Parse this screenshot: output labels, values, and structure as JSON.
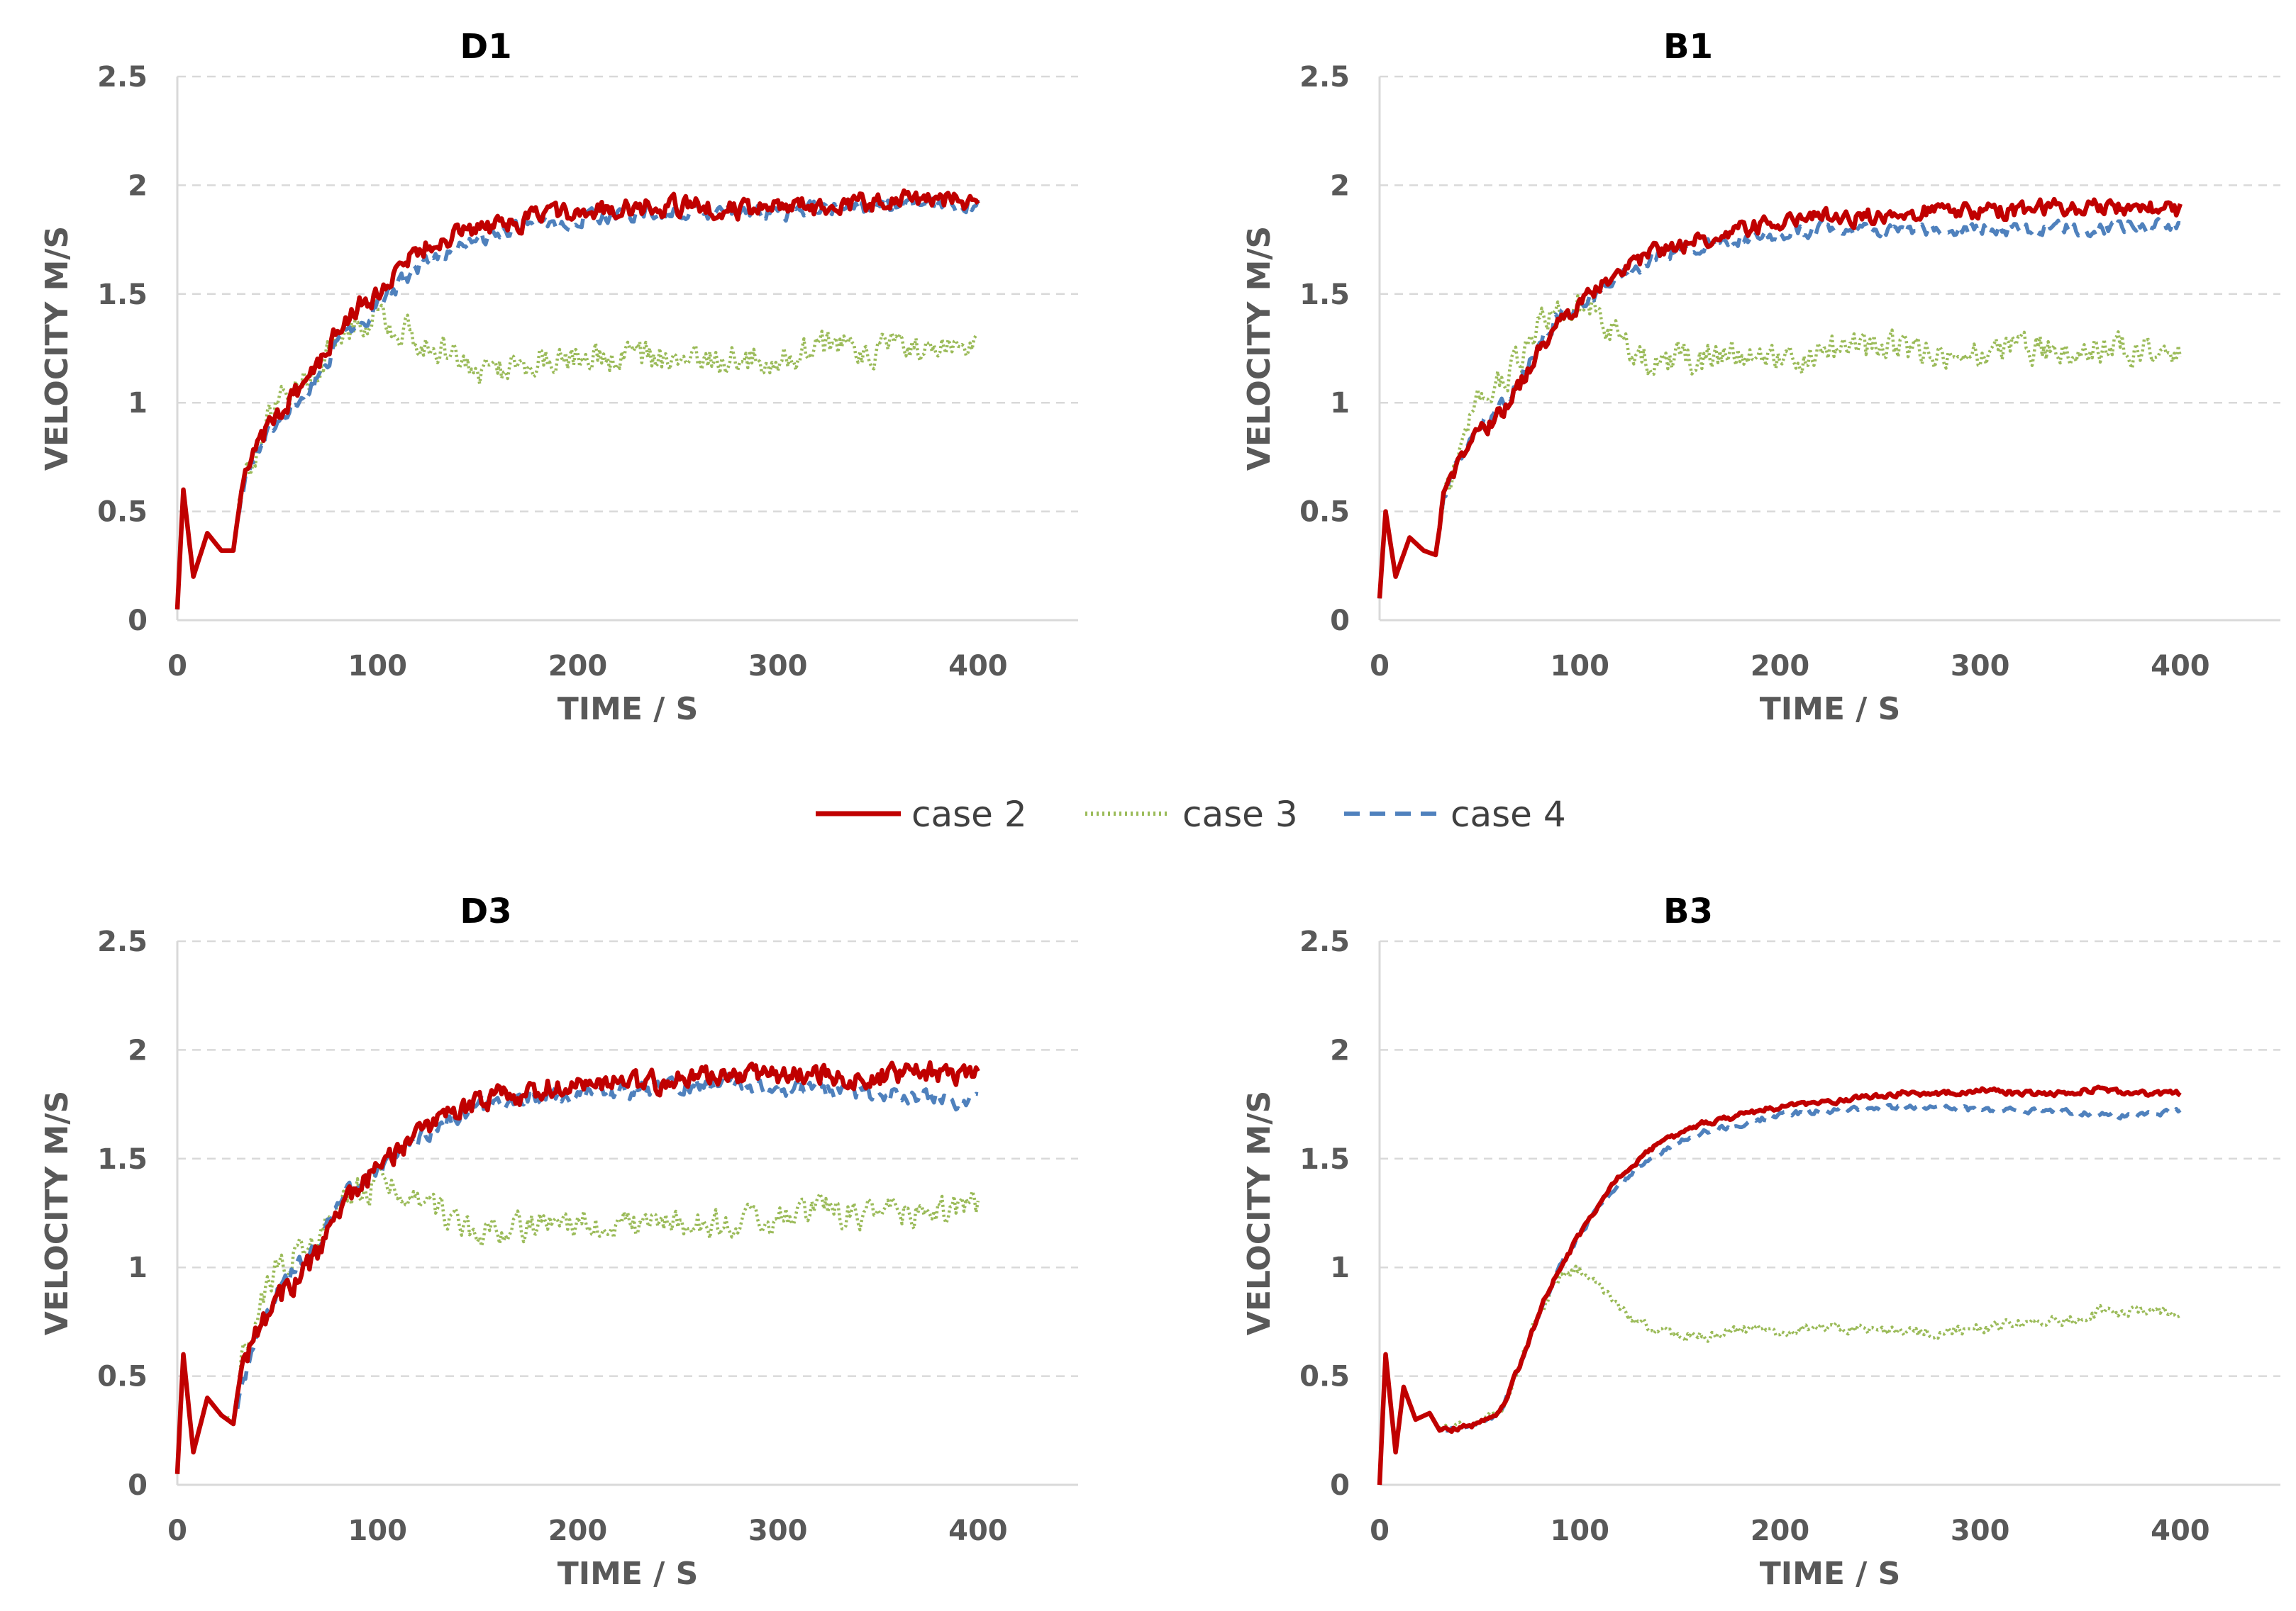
{
  "chart_data": [
    {
      "type": "line",
      "title": "D1",
      "xlabel": "TIME / S",
      "ylabel": "VELOCITY M/S",
      "xlim": [
        0,
        450
      ],
      "ylim": [
        0,
        2.5
      ],
      "xticks": [
        "0",
        "100",
        "200",
        "300",
        "400"
      ],
      "yticks": [
        "0",
        "0.5",
        "1",
        "1.5",
        "2",
        "2.5"
      ],
      "grid": true,
      "series": [
        {
          "name": "case 2",
          "x": [
            0,
            3,
            8,
            15,
            22,
            28,
            32,
            40,
            50,
            60,
            70,
            80,
            90,
            100,
            120,
            140,
            160,
            180,
            200,
            220,
            240,
            260,
            280,
            300,
            320,
            340,
            360,
            380,
            400
          ],
          "values": [
            0.05,
            0.6,
            0.2,
            0.4,
            0.32,
            0.32,
            0.6,
            0.8,
            0.95,
            1.05,
            1.15,
            1.35,
            1.45,
            1.5,
            1.7,
            1.78,
            1.82,
            1.85,
            1.88,
            1.9,
            1.9,
            1.9,
            1.88,
            1.9,
            1.9,
            1.92,
            1.92,
            1.95,
            1.92
          ],
          "noise": 0.07
        },
        {
          "name": "case 3",
          "x": [
            0,
            3,
            8,
            15,
            22,
            28,
            32,
            40,
            50,
            60,
            70,
            80,
            90,
            100,
            110,
            120,
            130,
            140,
            150,
            160,
            180,
            200,
            220,
            240,
            260,
            280,
            300,
            320,
            340,
            360,
            380,
            400
          ],
          "values": [
            0.05,
            0.6,
            0.2,
            0.4,
            0.32,
            0.32,
            0.6,
            0.8,
            1.0,
            1.05,
            1.15,
            1.3,
            1.38,
            1.4,
            1.35,
            1.3,
            1.25,
            1.2,
            1.15,
            1.15,
            1.2,
            1.2,
            1.2,
            1.2,
            1.2,
            1.2,
            1.2,
            1.25,
            1.25,
            1.25,
            1.25,
            1.3
          ],
          "noise": 0.11
        },
        {
          "name": "case 4",
          "x": [
            0,
            3,
            8,
            15,
            22,
            28,
            32,
            40,
            50,
            60,
            70,
            80,
            90,
            100,
            120,
            140,
            160,
            180,
            200,
            220,
            240,
            260,
            280,
            300,
            320,
            340,
            360,
            380,
            400
          ],
          "values": [
            0.05,
            0.6,
            0.2,
            0.4,
            0.32,
            0.32,
            0.6,
            0.78,
            0.92,
            1.0,
            1.1,
            1.28,
            1.35,
            1.45,
            1.62,
            1.72,
            1.78,
            1.82,
            1.85,
            1.87,
            1.88,
            1.88,
            1.88,
            1.88,
            1.9,
            1.9,
            1.9,
            1.92,
            1.9
          ],
          "noise": 0.06
        }
      ]
    },
    {
      "type": "line",
      "title": "B1",
      "xlabel": "TIME / S",
      "ylabel": "VELOCITY M/S",
      "xlim": [
        0,
        450
      ],
      "ylim": [
        0,
        2.5
      ],
      "xticks": [
        "0",
        "100",
        "200",
        "300",
        "400"
      ],
      "yticks": [
        "0",
        "0.5",
        "1",
        "1.5",
        "2",
        "2.5"
      ],
      "grid": true,
      "series": [
        {
          "name": "case 2",
          "x": [
            0,
            3,
            8,
            15,
            22,
            28,
            32,
            40,
            50,
            60,
            70,
            80,
            90,
            100,
            120,
            140,
            160,
            180,
            200,
            220,
            240,
            260,
            280,
            300,
            320,
            340,
            360,
            380,
            400
          ],
          "values": [
            0.1,
            0.5,
            0.2,
            0.38,
            0.32,
            0.3,
            0.55,
            0.75,
            0.85,
            0.95,
            1.08,
            1.25,
            1.38,
            1.45,
            1.6,
            1.7,
            1.75,
            1.8,
            1.82,
            1.85,
            1.85,
            1.87,
            1.88,
            1.88,
            1.88,
            1.9,
            1.9,
            1.9,
            1.88
          ],
          "noise": 0.06
        },
        {
          "name": "case 3",
          "x": [
            0,
            3,
            8,
            15,
            22,
            28,
            32,
            40,
            50,
            60,
            70,
            80,
            90,
            100,
            110,
            120,
            130,
            140,
            160,
            180,
            200,
            220,
            240,
            260,
            280,
            300,
            320,
            340,
            360,
            380,
            400
          ],
          "values": [
            0.1,
            0.5,
            0.2,
            0.38,
            0.32,
            0.3,
            0.55,
            0.8,
            1.0,
            1.1,
            1.2,
            1.35,
            1.45,
            1.45,
            1.38,
            1.3,
            1.2,
            1.2,
            1.2,
            1.25,
            1.22,
            1.22,
            1.25,
            1.25,
            1.22,
            1.22,
            1.25,
            1.25,
            1.25,
            1.25,
            1.25
          ],
          "noise": 0.11
        },
        {
          "name": "case 4",
          "x": [
            0,
            3,
            8,
            15,
            22,
            28,
            32,
            40,
            50,
            60,
            70,
            80,
            90,
            100,
            120,
            140,
            160,
            180,
            200,
            220,
            240,
            260,
            280,
            300,
            320,
            340,
            360,
            380,
            400
          ],
          "values": [
            0.1,
            0.5,
            0.2,
            0.38,
            0.32,
            0.3,
            0.55,
            0.75,
            0.88,
            0.98,
            1.1,
            1.28,
            1.4,
            1.45,
            1.58,
            1.68,
            1.72,
            1.75,
            1.78,
            1.8,
            1.8,
            1.8,
            1.8,
            1.8,
            1.8,
            1.8,
            1.8,
            1.82,
            1.82
          ],
          "noise": 0.05
        }
      ]
    },
    {
      "type": "line",
      "title": "D3",
      "xlabel": "TIME / S",
      "ylabel": "VELOCITY M/S",
      "xlim": [
        0,
        450
      ],
      "ylim": [
        0,
        2.5
      ],
      "xticks": [
        "0",
        "100",
        "200",
        "300",
        "400"
      ],
      "yticks": [
        "0",
        "0.5",
        "1",
        "1.5",
        "2",
        "2.5"
      ],
      "grid": true,
      "series": [
        {
          "name": "case 2",
          "x": [
            0,
            3,
            8,
            15,
            22,
            28,
            32,
            40,
            50,
            60,
            70,
            80,
            90,
            100,
            120,
            140,
            160,
            180,
            200,
            220,
            240,
            260,
            280,
            300,
            320,
            340,
            360,
            380,
            400
          ],
          "values": [
            0.05,
            0.6,
            0.15,
            0.4,
            0.32,
            0.28,
            0.55,
            0.7,
            0.85,
            0.95,
            1.05,
            1.25,
            1.35,
            1.45,
            1.62,
            1.72,
            1.78,
            1.82,
            1.85,
            1.85,
            1.85,
            1.88,
            1.88,
            1.88,
            1.9,
            1.88,
            1.88,
            1.9,
            1.88
          ],
          "noise": 0.08
        },
        {
          "name": "case 3",
          "x": [
            0,
            3,
            8,
            15,
            22,
            28,
            32,
            40,
            50,
            60,
            70,
            80,
            90,
            100,
            110,
            120,
            130,
            140,
            150,
            160,
            180,
            200,
            220,
            240,
            260,
            280,
            300,
            320,
            340,
            360,
            380,
            400
          ],
          "values": [
            0.05,
            0.6,
            0.15,
            0.4,
            0.32,
            0.3,
            0.55,
            0.8,
            1.0,
            1.05,
            1.1,
            1.25,
            1.35,
            1.38,
            1.35,
            1.3,
            1.25,
            1.2,
            1.15,
            1.15,
            1.2,
            1.2,
            1.2,
            1.2,
            1.2,
            1.2,
            1.22,
            1.25,
            1.25,
            1.25,
            1.25,
            1.3
          ],
          "noise": 0.11
        },
        {
          "name": "case 4",
          "x": [
            30,
            40,
            50,
            60,
            70,
            80,
            90,
            100,
            120,
            140,
            160,
            180,
            200,
            220,
            240,
            260,
            280,
            300,
            320,
            340,
            360,
            380,
            400
          ],
          "values": [
            0.35,
            0.7,
            0.9,
            1.0,
            1.1,
            1.3,
            1.38,
            1.45,
            1.6,
            1.7,
            1.75,
            1.78,
            1.8,
            1.82,
            1.82,
            1.85,
            1.85,
            1.82,
            1.82,
            1.8,
            1.8,
            1.78,
            1.75
          ],
          "noise": 0.06
        }
      ]
    },
    {
      "type": "line",
      "title": "B3",
      "xlabel": "TIME / S",
      "ylabel": "VELOCITY M/S",
      "xlim": [
        0,
        450
      ],
      "ylim": [
        0,
        2.5
      ],
      "xticks": [
        "0",
        "100",
        "200",
        "300",
        "400"
      ],
      "yticks": [
        "0",
        "0.5",
        "1",
        "1.5",
        "2",
        "2.5"
      ],
      "grid": true,
      "series": [
        {
          "name": "case 2",
          "x": [
            0,
            3,
            8,
            12,
            18,
            25,
            30,
            40,
            50,
            60,
            70,
            80,
            90,
            100,
            110,
            120,
            130,
            140,
            160,
            180,
            200,
            220,
            240,
            260,
            280,
            300,
            320,
            340,
            360,
            380,
            400
          ],
          "values": [
            0.0,
            0.6,
            0.15,
            0.45,
            0.3,
            0.33,
            0.25,
            0.26,
            0.28,
            0.33,
            0.55,
            0.8,
            1.0,
            1.15,
            1.3,
            1.42,
            1.5,
            1.57,
            1.66,
            1.7,
            1.74,
            1.76,
            1.78,
            1.8,
            1.8,
            1.82,
            1.8,
            1.8,
            1.82,
            1.8,
            1.8
          ],
          "noise": 0.02
        },
        {
          "name": "case 3",
          "x": [
            0,
            3,
            8,
            12,
            18,
            25,
            30,
            40,
            50,
            60,
            70,
            80,
            90,
            100,
            110,
            120,
            130,
            140,
            160,
            180,
            200,
            220,
            240,
            260,
            280,
            300,
            320,
            340,
            360,
            380,
            400
          ],
          "values": [
            0.0,
            0.6,
            0.15,
            0.45,
            0.3,
            0.33,
            0.25,
            0.26,
            0.28,
            0.33,
            0.55,
            0.8,
            0.95,
            1.0,
            0.9,
            0.82,
            0.75,
            0.7,
            0.68,
            0.72,
            0.7,
            0.72,
            0.72,
            0.7,
            0.7,
            0.72,
            0.75,
            0.75,
            0.8,
            0.8,
            0.8
          ],
          "noise": 0.04
        },
        {
          "name": "case 4",
          "x": [
            0,
            3,
            8,
            12,
            18,
            25,
            30,
            40,
            50,
            60,
            70,
            80,
            90,
            100,
            110,
            120,
            130,
            140,
            160,
            180,
            200,
            220,
            240,
            260,
            280,
            300,
            320,
            340,
            360,
            380,
            400
          ],
          "values": [
            0.0,
            0.6,
            0.15,
            0.45,
            0.3,
            0.33,
            0.25,
            0.26,
            0.28,
            0.33,
            0.55,
            0.8,
            1.0,
            1.15,
            1.28,
            1.38,
            1.47,
            1.53,
            1.62,
            1.66,
            1.7,
            1.72,
            1.73,
            1.74,
            1.74,
            1.72,
            1.72,
            1.72,
            1.7,
            1.7,
            1.72
          ],
          "noise": 0.02
        }
      ]
    }
  ],
  "legend": {
    "position": "center",
    "entries": [
      {
        "label": "case 2",
        "color": "#c00000",
        "style": "solid"
      },
      {
        "label": "case 3",
        "color": "#9bbb59",
        "style": "dotted"
      },
      {
        "label": "case 4",
        "color": "#4f81bd",
        "style": "dashed"
      }
    ]
  },
  "colors": {
    "case 2": "#c00000",
    "case 3": "#9bbb59",
    "case 4": "#4f81bd"
  }
}
